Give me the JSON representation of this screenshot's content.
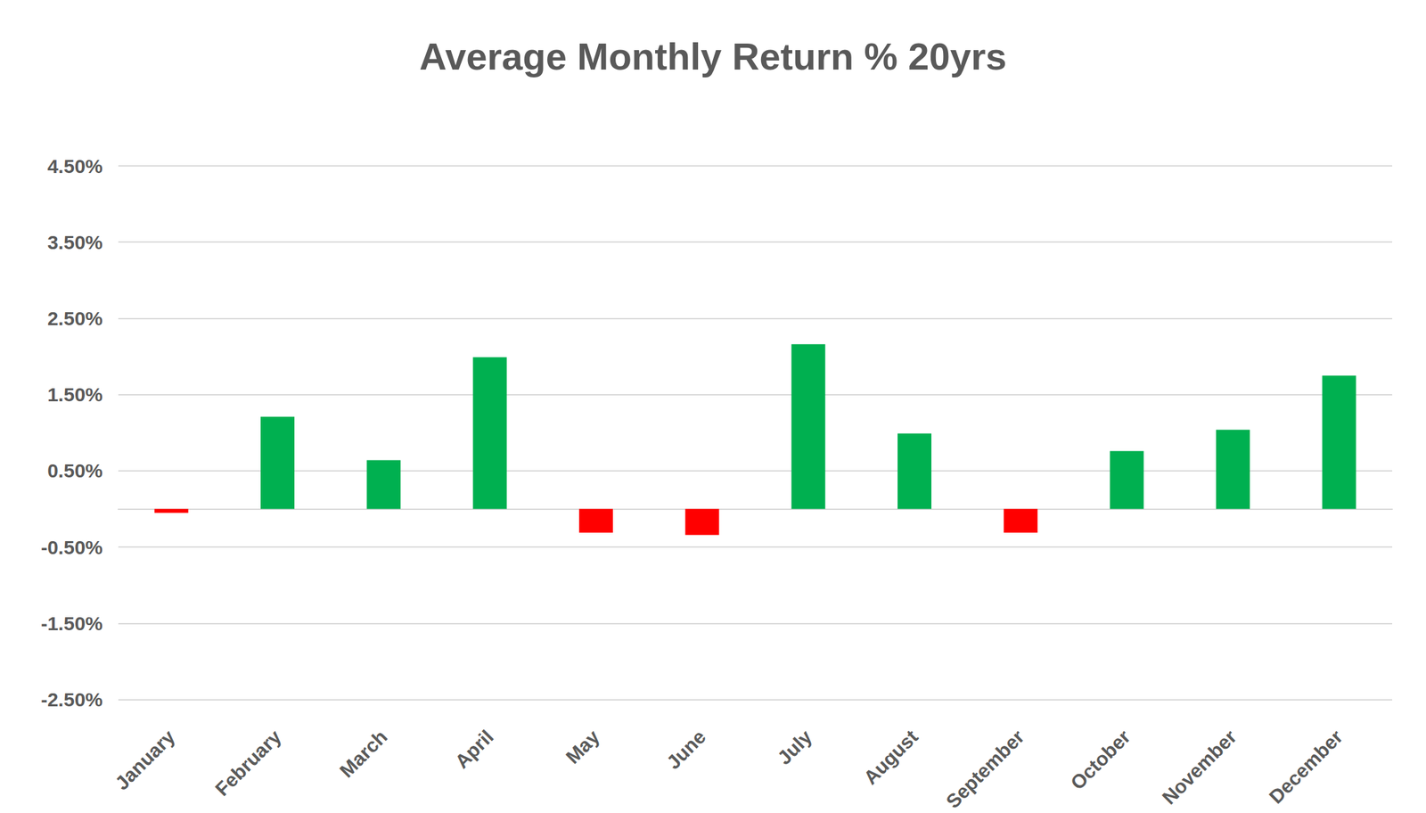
{
  "chart_data": {
    "type": "bar",
    "title": "Average Monthly Return % 20yrs",
    "categories": [
      "January",
      "February",
      "March",
      "April",
      "May",
      "June",
      "July",
      "August",
      "September",
      "October",
      "November",
      "December"
    ],
    "values": [
      -0.05,
      1.21,
      0.64,
      1.99,
      -0.31,
      -0.34,
      2.16,
      0.99,
      -0.31,
      0.76,
      1.04,
      1.75
    ],
    "colors": [
      "#ff0000",
      "#00b050",
      "#00b050",
      "#00b050",
      "#ff0000",
      "#ff0000",
      "#00b050",
      "#00b050",
      "#ff0000",
      "#00b050",
      "#00b050",
      "#00b050"
    ],
    "ylim": [
      -2.5,
      4.5
    ],
    "yticks": [
      {
        "value": -2.5,
        "label": "-2.50%"
      },
      {
        "value": -1.5,
        "label": "-1.50%"
      },
      {
        "value": -0.5,
        "label": "-0.50%"
      },
      {
        "value": 0.5,
        "label": "0.50%"
      },
      {
        "value": 1.5,
        "label": "1.50%"
      },
      {
        "value": 2.5,
        "label": "2.50%"
      },
      {
        "value": 3.5,
        "label": "3.50%"
      },
      {
        "value": 4.5,
        "label": "4.50%"
      }
    ],
    "grid": true
  }
}
